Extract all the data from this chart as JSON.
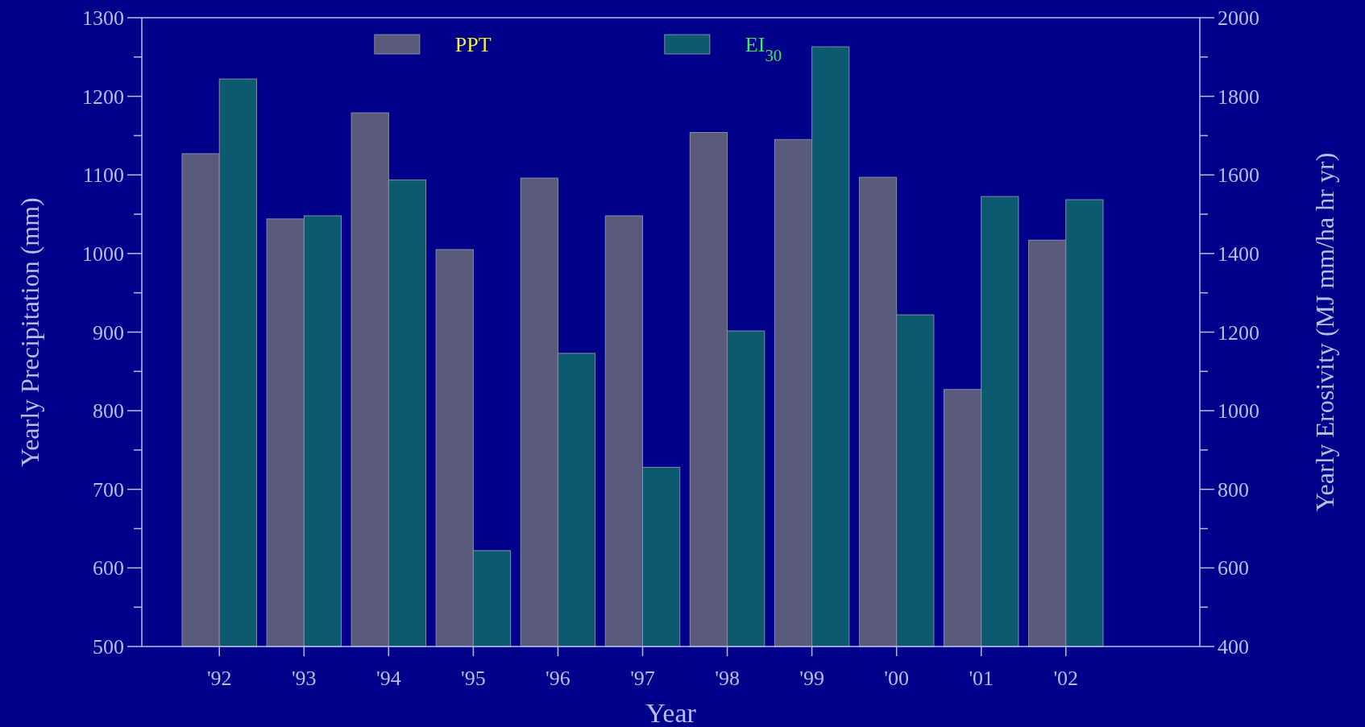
{
  "chart_data": {
    "type": "bar",
    "xlabel": "Year",
    "ylabel": "Yearly Precipitation (mm)",
    "y2label": "Yearly Erosivity (MJ mm/ha hr yr)",
    "categories": [
      "'92",
      "'93",
      "'94",
      "'95",
      "'96",
      "'97",
      "'98",
      "'99",
      "'00",
      "'01",
      "'02"
    ],
    "series": [
      {
        "name": "PPT",
        "color": "#5a5a7c",
        "values": [
          1127,
          1044,
          1179,
          1005,
          1096,
          1048,
          1154,
          1145,
          1097,
          827,
          1017
        ]
      },
      {
        "name": "EI$_{30}$",
        "color": "#0b5a70",
        "axis": "y2",
        "values": [
          1844,
          1496,
          1587,
          644,
          1146,
          856,
          1203,
          1926,
          1244,
          1545,
          1537
        ]
      }
    ],
    "ylim": [
      500,
      1300
    ],
    "yticks": [
      500,
      600,
      700,
      800,
      900,
      1000,
      1100,
      1200,
      1300
    ],
    "y2lim": [
      400,
      2000
    ],
    "y2ticks": [
      400,
      600,
      800,
      1000,
      1200,
      1400,
      1600,
      1800,
      2000
    ],
    "legend": "top",
    "grid": false
  }
}
